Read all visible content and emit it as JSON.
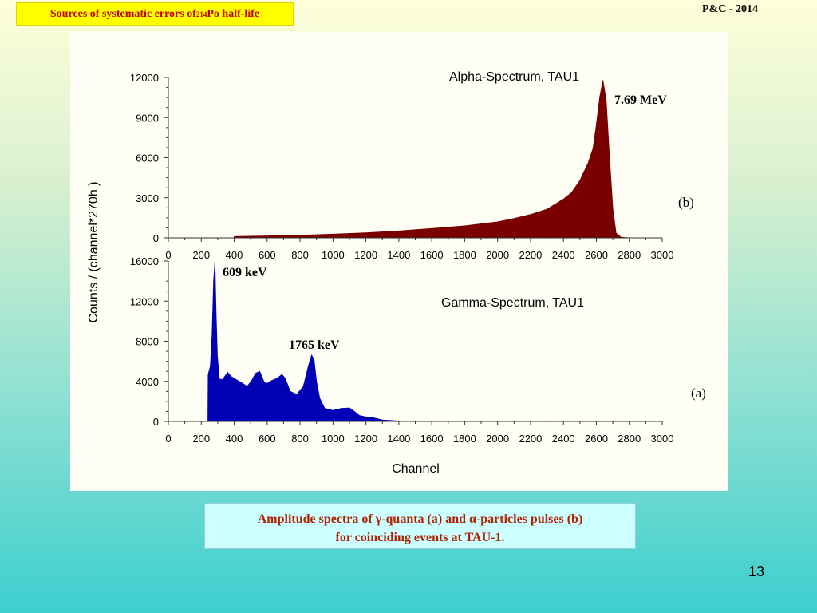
{
  "slide": {
    "title_main": "Sources of systematic errors of ",
    "title_sup": "214",
    "title_tail": "Po half-life",
    "header_right": "P&C - 2014",
    "caption_line1": "Amplitude spectra of γ-quanta (a) and α-particles pulses (b)",
    "caption_line2": "for coinciding events at TAU-1.",
    "page_number": "13"
  },
  "colors": {
    "alpha_fill": "#7a0000",
    "gamma_fill": "#0000b4",
    "title_bg": "#ffff00",
    "title_text": "#c00000",
    "caption_bg": "#ccffff",
    "caption_text": "#b22000"
  },
  "chart_data": [
    {
      "type": "area",
      "title": "Alpha-Spectrum, TAU1",
      "panel_label": "(b)",
      "xlabel": "",
      "ylabel": "Counts / (channel*270h )",
      "xlim": [
        0,
        3000
      ],
      "ylim": [
        0,
        12000
      ],
      "x_ticks": [
        0,
        200,
        400,
        600,
        800,
        1000,
        1200,
        1400,
        1600,
        1800,
        2000,
        2200,
        2400,
        2600,
        2800,
        3000
      ],
      "y_ticks": [
        0,
        3000,
        6000,
        9000,
        12000
      ],
      "annotations": [
        {
          "text": "7.69 MeV",
          "x": 2640,
          "y": 11700
        }
      ],
      "series": [
        {
          "x": [
            0,
            400,
            400,
            600,
            800,
            1000,
            1200,
            1400,
            1600,
            1800,
            2000,
            2100,
            2200,
            2300,
            2400,
            2450,
            2500,
            2550,
            2580,
            2600,
            2620,
            2640,
            2660,
            2680,
            2700,
            2720,
            2750,
            2800,
            3000
          ],
          "y": [
            0,
            0,
            100,
            150,
            200,
            280,
            380,
            520,
            700,
            900,
            1200,
            1450,
            1750,
            2150,
            2900,
            3400,
            4300,
            5600,
            6700,
            8500,
            10500,
            11800,
            10300,
            6000,
            2200,
            350,
            50,
            0,
            0
          ]
        }
      ]
    },
    {
      "type": "area",
      "title": "Gamma-Spectrum, TAU1",
      "panel_label": "(a)",
      "xlabel": "Channel",
      "ylabel": "Counts / (channel*270h )",
      "xlim": [
        0,
        3000
      ],
      "ylim": [
        0,
        16000
      ],
      "x_ticks": [
        0,
        200,
        400,
        600,
        800,
        1000,
        1200,
        1400,
        1600,
        1800,
        2000,
        2200,
        2400,
        2600,
        2800,
        3000
      ],
      "y_ticks": [
        0,
        4000,
        8000,
        12000,
        16000
      ],
      "annotations": [
        {
          "text": "609 keV",
          "x": 290,
          "y": 15800
        },
        {
          "text": "1765 keV",
          "x": 870,
          "y": 6700
        }
      ],
      "series": [
        {
          "x": [
            0,
            240,
            242,
            255,
            265,
            275,
            283,
            290,
            298,
            310,
            330,
            360,
            380,
            400,
            440,
            480,
            510,
            530,
            555,
            580,
            600,
            630,
            660,
            690,
            710,
            740,
            780,
            820,
            850,
            870,
            885,
            900,
            920,
            950,
            1000,
            1050,
            1100,
            1130,
            1160,
            1200,
            1250,
            1300,
            1400,
            1600,
            2000,
            3000
          ],
          "y": [
            0,
            0,
            4700,
            5500,
            8500,
            14000,
            16000,
            11000,
            6500,
            4200,
            4200,
            4900,
            4500,
            4300,
            3900,
            3500,
            4200,
            4800,
            5000,
            4000,
            3800,
            4100,
            4300,
            4700,
            4300,
            3000,
            2700,
            3500,
            5500,
            6600,
            6200,
            4000,
            2300,
            1300,
            1100,
            1300,
            1350,
            1000,
            600,
            450,
            350,
            150,
            50,
            20,
            0,
            0
          ]
        }
      ]
    }
  ]
}
